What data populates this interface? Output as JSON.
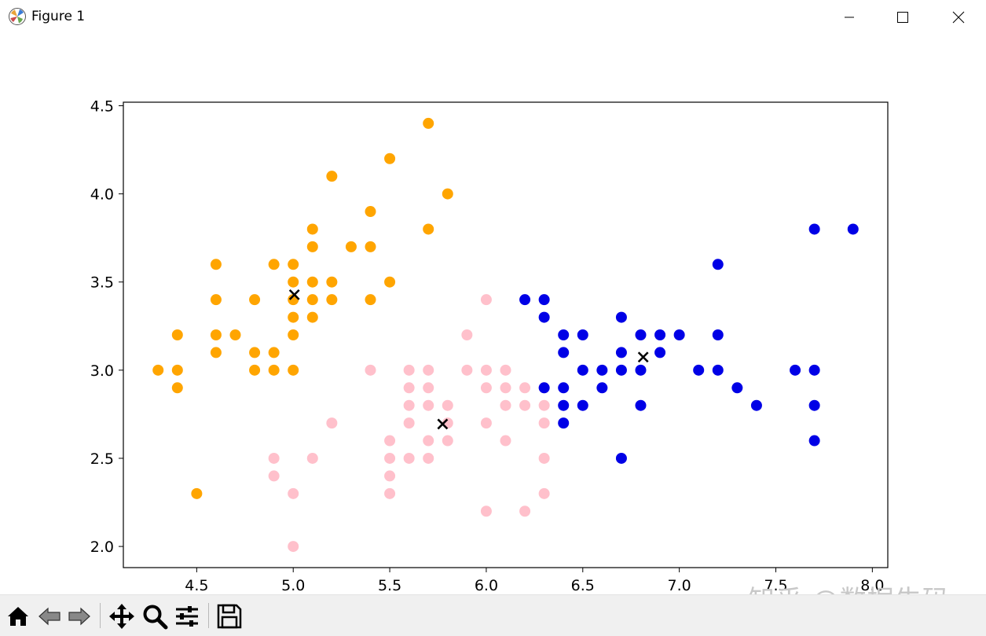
{
  "window": {
    "title": "Figure 1",
    "controls": [
      "minimize",
      "maximize",
      "close"
    ]
  },
  "toolbar": {
    "buttons": [
      {
        "name": "home",
        "icon": "home-icon"
      },
      {
        "name": "back",
        "icon": "back-arrow-icon"
      },
      {
        "name": "forward",
        "icon": "forward-arrow-icon"
      },
      {
        "name": "pan",
        "icon": "move-icon"
      },
      {
        "name": "zoom",
        "icon": "magnifier-icon"
      },
      {
        "name": "configure",
        "icon": "sliders-icon"
      },
      {
        "name": "save",
        "icon": "floppy-icon"
      }
    ]
  },
  "watermark": {
    "text": "知乎 @数据牛码"
  },
  "chart_data": {
    "type": "scatter",
    "title": "",
    "xlabel": "",
    "ylabel": "",
    "xlim": [
      4.12,
      8.08
    ],
    "ylim": [
      1.88,
      4.52
    ],
    "xticks": [
      4.5,
      5.0,
      5.5,
      6.0,
      6.5,
      7.0,
      7.5,
      8.0
    ],
    "yticks": [
      2.0,
      2.5,
      3.0,
      3.5,
      4.0,
      4.5
    ],
    "grid": false,
    "legend": "none",
    "series": [
      {
        "color": "#ffa500",
        "marker": "circle",
        "points": [
          [
            4.3,
            3.0
          ],
          [
            4.4,
            3.2
          ],
          [
            4.4,
            3.0
          ],
          [
            4.4,
            2.9
          ],
          [
            4.5,
            2.3
          ],
          [
            4.6,
            3.6
          ],
          [
            4.6,
            3.4
          ],
          [
            4.6,
            3.2
          ],
          [
            4.6,
            3.1
          ],
          [
            4.7,
            3.2
          ],
          [
            4.8,
            3.4
          ],
          [
            4.8,
            3.1
          ],
          [
            4.8,
            3.0
          ],
          [
            4.9,
            3.6
          ],
          [
            4.9,
            3.1
          ],
          [
            4.9,
            3.0
          ],
          [
            5.0,
            3.6
          ],
          [
            5.0,
            3.5
          ],
          [
            5.0,
            3.4
          ],
          [
            5.0,
            3.3
          ],
          [
            5.0,
            3.2
          ],
          [
            5.0,
            3.0
          ],
          [
            5.1,
            3.8
          ],
          [
            5.1,
            3.7
          ],
          [
            5.1,
            3.5
          ],
          [
            5.1,
            3.4
          ],
          [
            5.1,
            3.3
          ],
          [
            5.2,
            4.1
          ],
          [
            5.2,
            3.5
          ],
          [
            5.2,
            3.4
          ],
          [
            5.3,
            3.7
          ],
          [
            5.4,
            3.9
          ],
          [
            5.4,
            3.7
          ],
          [
            5.4,
            3.4
          ],
          [
            5.5,
            4.2
          ],
          [
            5.5,
            3.5
          ],
          [
            5.7,
            4.4
          ],
          [
            5.7,
            3.8
          ],
          [
            5.8,
            4.0
          ]
        ]
      },
      {
        "color": "#ffc0cb",
        "marker": "circle",
        "points": [
          [
            4.9,
            2.5
          ],
          [
            4.9,
            2.4
          ],
          [
            5.0,
            2.3
          ],
          [
            5.0,
            2.0
          ],
          [
            5.1,
            2.5
          ],
          [
            5.2,
            2.7
          ],
          [
            5.4,
            3.0
          ],
          [
            5.5,
            2.6
          ],
          [
            5.5,
            2.5
          ],
          [
            5.5,
            2.4
          ],
          [
            5.5,
            2.3
          ],
          [
            5.6,
            3.0
          ],
          [
            5.6,
            2.9
          ],
          [
            5.6,
            2.8
          ],
          [
            5.6,
            2.7
          ],
          [
            5.6,
            2.5
          ],
          [
            5.7,
            3.0
          ],
          [
            5.7,
            2.9
          ],
          [
            5.7,
            2.8
          ],
          [
            5.7,
            2.6
          ],
          [
            5.7,
            2.5
          ],
          [
            5.8,
            2.8
          ],
          [
            5.8,
            2.7
          ],
          [
            5.8,
            2.6
          ],
          [
            5.9,
            3.2
          ],
          [
            5.9,
            3.0
          ],
          [
            6.0,
            3.4
          ],
          [
            6.0,
            3.0
          ],
          [
            6.0,
            2.9
          ],
          [
            6.0,
            2.7
          ],
          [
            6.0,
            2.2
          ],
          [
            6.1,
            3.0
          ],
          [
            6.1,
            2.9
          ],
          [
            6.1,
            2.8
          ],
          [
            6.1,
            2.6
          ],
          [
            6.2,
            2.9
          ],
          [
            6.2,
            2.8
          ],
          [
            6.2,
            2.2
          ],
          [
            6.3,
            2.9
          ],
          [
            6.3,
            2.8
          ],
          [
            6.3,
            2.7
          ],
          [
            6.3,
            2.5
          ],
          [
            6.3,
            2.3
          ]
        ]
      },
      {
        "color": "#0000e6",
        "marker": "circle",
        "points": [
          [
            6.2,
            3.4
          ],
          [
            6.3,
            3.4
          ],
          [
            6.3,
            3.3
          ],
          [
            6.3,
            2.9
          ],
          [
            6.4,
            3.2
          ],
          [
            6.4,
            3.1
          ],
          [
            6.4,
            2.9
          ],
          [
            6.4,
            2.8
          ],
          [
            6.4,
            2.7
          ],
          [
            6.5,
            3.2
          ],
          [
            6.5,
            3.0
          ],
          [
            6.5,
            2.8
          ],
          [
            6.6,
            3.0
          ],
          [
            6.6,
            2.9
          ],
          [
            6.7,
            3.3
          ],
          [
            6.7,
            3.1
          ],
          [
            6.7,
            3.0
          ],
          [
            6.7,
            2.5
          ],
          [
            6.8,
            3.2
          ],
          [
            6.8,
            3.0
          ],
          [
            6.8,
            2.8
          ],
          [
            6.9,
            3.2
          ],
          [
            6.9,
            3.1
          ],
          [
            7.0,
            3.2
          ],
          [
            7.1,
            3.0
          ],
          [
            7.2,
            3.6
          ],
          [
            7.2,
            3.2
          ],
          [
            7.2,
            3.0
          ],
          [
            7.3,
            2.9
          ],
          [
            7.4,
            2.8
          ],
          [
            7.6,
            3.0
          ],
          [
            7.7,
            3.8
          ],
          [
            7.7,
            3.0
          ],
          [
            7.7,
            2.8
          ],
          [
            7.7,
            2.6
          ],
          [
            7.9,
            3.8
          ]
        ]
      },
      {
        "color": "#000000",
        "marker": "x",
        "points": [
          [
            5.006,
            3.428
          ],
          [
            5.774,
            2.694
          ],
          [
            6.813,
            3.074
          ]
        ]
      }
    ]
  }
}
